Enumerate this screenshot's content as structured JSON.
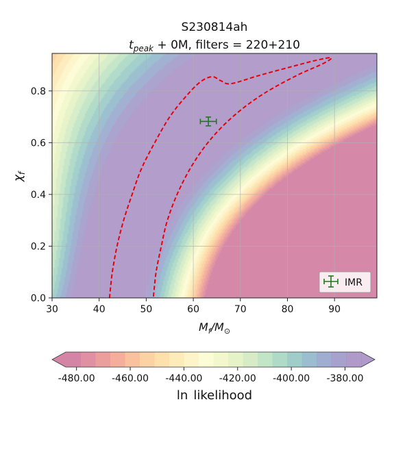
{
  "chart_data": {
    "type": "heatmap",
    "title_line1": "S230814ah",
    "title_line2_parts": {
      "t": "t",
      "sub": "peak",
      "rest": " + 0M, filters = 220+210"
    },
    "xlabel_parts": {
      "M": "M",
      "sub_f": "f",
      "slash": "/",
      "M2": "M",
      "sub_sun": "⊙"
    },
    "ylabel_parts": {
      "chi": "χ",
      "sub": "f"
    },
    "xlim": [
      30,
      99
    ],
    "ylim": [
      0.0,
      0.945
    ],
    "xticks": [
      30,
      40,
      50,
      60,
      70,
      80,
      90
    ],
    "yticks": [
      0.0,
      0.2,
      0.4,
      0.6,
      0.8
    ],
    "xtick_labels": [
      "30",
      "40",
      "50",
      "60",
      "70",
      "80",
      "90"
    ],
    "ytick_labels": [
      "0.0",
      "0.2",
      "0.4",
      "0.6",
      "0.8"
    ],
    "grid": true,
    "contour_levels_min": -484,
    "contour_levels_max": -374,
    "contour_level_step": 5,
    "likelihood_peak": {
      "mf": 62.5,
      "chi": 0.7,
      "lnL": -374
    },
    "credible_contour_path": [
      [
        42.2,
        0.0
      ],
      [
        42.8,
        0.1
      ],
      [
        43.8,
        0.2
      ],
      [
        45.2,
        0.3
      ],
      [
        47.0,
        0.4
      ],
      [
        49.0,
        0.5
      ],
      [
        51.8,
        0.6
      ],
      [
        55.0,
        0.7
      ],
      [
        58.5,
        0.78
      ],
      [
        61.5,
        0.835
      ],
      [
        64.0,
        0.855
      ],
      [
        65.8,
        0.84
      ],
      [
        68.0,
        0.828
      ],
      [
        74.0,
        0.86
      ],
      [
        80.5,
        0.892
      ],
      [
        86.0,
        0.918
      ],
      [
        89.3,
        0.928
      ],
      [
        87.5,
        0.905
      ],
      [
        82.0,
        0.86
      ],
      [
        75.0,
        0.79
      ],
      [
        69.0,
        0.71
      ],
      [
        64.0,
        0.62
      ],
      [
        60.0,
        0.52
      ],
      [
        56.8,
        0.41
      ],
      [
        54.5,
        0.3
      ],
      [
        53.2,
        0.2
      ],
      [
        52.1,
        0.1
      ],
      [
        51.5,
        0.0
      ]
    ],
    "imr_point": {
      "mf": 63.2,
      "chi": 0.682,
      "mf_err": 1.7,
      "chi_err": 0.017
    },
    "legend": {
      "label": "IMR",
      "position": "lower-right"
    },
    "colorbar": {
      "label_parts": [
        "ln",
        "likelihood"
      ],
      "ticks": [
        -480,
        -460,
        -440,
        -420,
        -400,
        -380
      ],
      "tick_labels": [
        "-480.00",
        "-460.00",
        "-440.00",
        "-420.00",
        "-400.00",
        "-380.00"
      ],
      "range": [
        -484,
        -374
      ],
      "colors": [
        "#cc6e95",
        "#db7d92",
        "#e88d8b",
        "#f2a08a",
        "#f8b68d",
        "#fbc993",
        "#fdda9e",
        "#fde8ae",
        "#fdf3c0",
        "#fcfbd0",
        "#f1f7c3",
        "#e2f1be",
        "#cfe9bd",
        "#b9e0bd",
        "#a1d4bd",
        "#8fc4c1",
        "#88b2c7",
        "#8ea0c8",
        "#9890c5",
        "#a188c0"
      ]
    },
    "colors": {
      "credible_contour": "#e8000b",
      "imr": "#1a7a1a",
      "grid": "#b0b0b0"
    }
  }
}
